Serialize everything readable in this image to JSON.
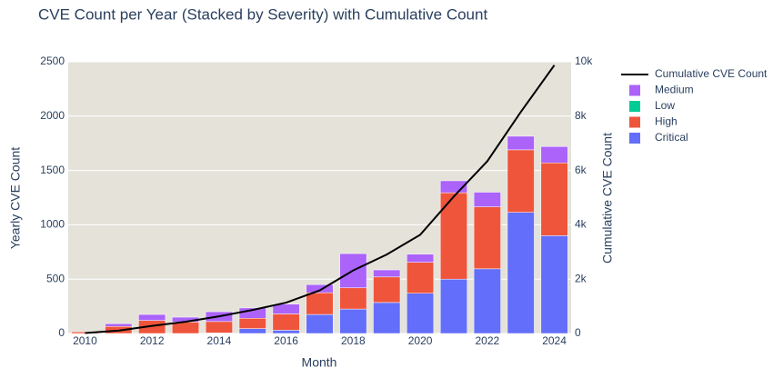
{
  "chart_data": {
    "type": "bar",
    "title": "CVE Count per Year (Stacked by Severity) with Cumulative Count",
    "x_label": "Month",
    "y_label": "Yearly CVE Count",
    "y2_label": "Cumulative CVE Count",
    "x": [
      2010,
      2011,
      2012,
      2013,
      2014,
      2015,
      2016,
      2017,
      2018,
      2019,
      2020,
      2021,
      2022,
      2023,
      2024
    ],
    "xlim": [
      2009.5,
      2024.5
    ],
    "xticks": [
      2010,
      2012,
      2014,
      2016,
      2018,
      2020,
      2022,
      2024
    ],
    "ylim": [
      0,
      2500
    ],
    "yticks": [
      0,
      500,
      1000,
      1500,
      2000,
      2500
    ],
    "y2lim": [
      0,
      10000
    ],
    "y2ticks": [
      0,
      {
        "value": 2000,
        "label": "2k"
      },
      {
        "value": 4000,
        "label": "4k"
      },
      {
        "value": 6000,
        "label": "6k"
      },
      {
        "value": 8000,
        "label": "8k"
      },
      {
        "value": 10000,
        "label": "10k"
      }
    ],
    "grid": true,
    "stacked": true,
    "series": [
      {
        "name": "Critical",
        "color": "#636efa",
        "values": [
          0,
          0,
          0,
          0,
          5,
          45,
          30,
          175,
          225,
          285,
          370,
          500,
          595,
          1115,
          900
        ]
      },
      {
        "name": "High",
        "color": "#ef553b",
        "values": [
          15,
          65,
          120,
          105,
          105,
          95,
          150,
          200,
          195,
          235,
          285,
          795,
          570,
          575,
          670
        ]
      },
      {
        "name": "Low",
        "color": "#00cc96",
        "values": [
          0,
          0,
          0,
          0,
          0,
          0,
          0,
          0,
          0,
          0,
          0,
          0,
          0,
          0,
          0
        ]
      },
      {
        "name": "Medium",
        "color": "#ab63fa",
        "values": [
          0,
          25,
          55,
          45,
          90,
          95,
          90,
          75,
          315,
          65,
          75,
          110,
          135,
          125,
          150
        ]
      },
      {
        "name": "Cumulative CVE Count",
        "type": "line",
        "axis": "y2",
        "color": "#000000",
        "values": [
          15,
          105,
          280,
          430,
          630,
          865,
          1135,
          1585,
          2320,
          2905,
          3635,
          5040,
          6340,
          8155,
          9875
        ]
      }
    ]
  }
}
